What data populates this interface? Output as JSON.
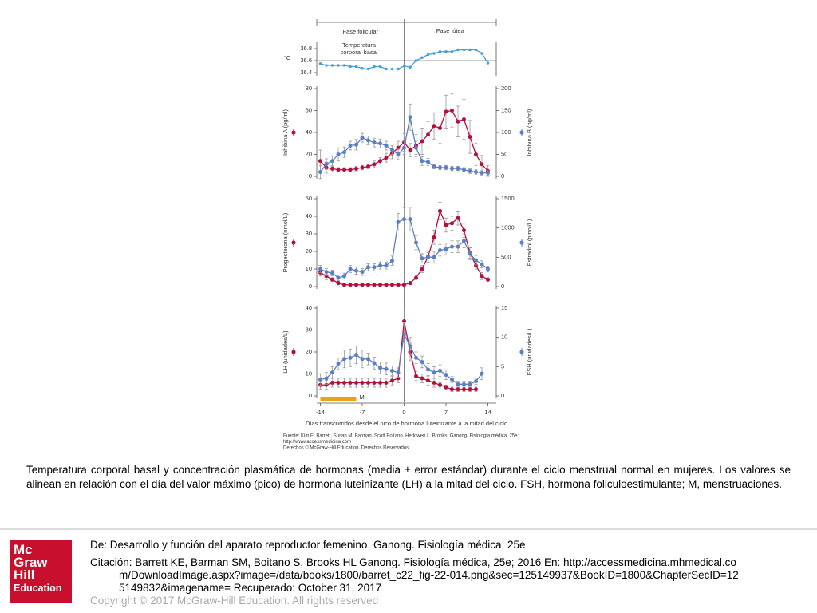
{
  "chart_data": [
    {
      "type": "line",
      "phases": [
        "Fase folicular",
        "Fase lútea"
      ],
      "annotations": [
        "Temperatura",
        "corporal basal"
      ],
      "ylabel": "°C",
      "x": [
        -14,
        -13,
        -12,
        -11,
        -10,
        -9,
        -8,
        -7,
        -6,
        -5,
        -4,
        -3,
        -2,
        -1,
        0,
        1,
        2,
        3,
        4,
        5,
        6,
        7,
        8,
        9,
        10,
        11,
        12,
        13,
        14
      ],
      "xlim": [
        -14.6,
        15.4
      ],
      "ylim": [
        36.4,
        36.8
      ],
      "yticks": [
        36.4,
        36.6,
        36.8
      ],
      "series": [
        {
          "color": "#4a9fd6",
          "values": [
            36.55,
            36.52,
            36.52,
            36.52,
            36.52,
            36.5,
            36.5,
            36.47,
            36.46,
            36.5,
            36.5,
            36.46,
            36.46,
            36.46,
            36.51,
            36.49,
            36.6,
            36.65,
            36.7,
            36.72,
            36.75,
            36.75,
            36.75,
            36.78,
            36.78,
            36.78,
            36.78,
            36.72,
            36.56
          ]
        }
      ]
    },
    {
      "type": "line",
      "x": [
        -14,
        -13,
        -12,
        -11,
        -10,
        -9,
        -8,
        -7,
        -6,
        -5,
        -4,
        -3,
        -2,
        -1,
        0,
        1,
        2,
        3,
        4,
        5,
        6,
        7,
        8,
        9,
        10,
        11,
        12,
        13,
        14
      ],
      "xlim": [
        -14.6,
        15.4
      ],
      "ylim": [
        0,
        80
      ],
      "yticks": [
        0,
        20,
        40,
        60,
        80
      ],
      "y2lim": [
        0,
        200
      ],
      "y2ticks": [
        0,
        50,
        100,
        150,
        200
      ],
      "series": [
        {
          "name": "Inhibina A (pg/ml)",
          "color": "#b5103c",
          "values": [
            14,
            8,
            7,
            6,
            6,
            6,
            7,
            8,
            9,
            11,
            14,
            17,
            21,
            26,
            31,
            24,
            28,
            32,
            38,
            46,
            44,
            59,
            60,
            50,
            52,
            36,
            20,
            11,
            5
          ],
          "errors": [
            10,
            5,
            3,
            2,
            2,
            2,
            2,
            2,
            2,
            3,
            3,
            4,
            5,
            6,
            8,
            6,
            10,
            12,
            12,
            12,
            14,
            15,
            15,
            14,
            18,
            15,
            10,
            8,
            5
          ]
        },
        {
          "name": "Inhibina B (pg/ml)",
          "color": "#5b7fc4",
          "axis": "y2",
          "values": [
            10,
            28,
            35,
            50,
            55,
            70,
            72,
            88,
            82,
            77,
            75,
            70,
            60,
            50,
            65,
            135,
            65,
            35,
            33,
            22,
            20,
            20,
            18,
            18,
            15,
            12,
            10,
            8,
            8
          ],
          "errors": [
            15,
            12,
            12,
            15,
            12,
            10,
            12,
            10,
            10,
            10,
            10,
            10,
            10,
            12,
            15,
            30,
            15,
            10,
            8,
            5,
            5,
            5,
            5,
            5,
            5,
            5,
            5,
            5,
            5
          ]
        }
      ]
    },
    {
      "type": "line",
      "x": [
        -14,
        -13,
        -12,
        -11,
        -10,
        -9,
        -8,
        -7,
        -6,
        -5,
        -4,
        -3,
        -2,
        -1,
        0,
        1,
        2,
        3,
        4,
        5,
        6,
        7,
        8,
        9,
        10,
        11,
        12,
        13,
        14
      ],
      "xlim": [
        -14.6,
        15.4
      ],
      "ylim": [
        0,
        50
      ],
      "yticks": [
        0,
        10,
        20,
        30,
        40,
        50
      ],
      "y2lim": [
        0,
        1500
      ],
      "y2ticks": [
        0,
        500,
        1000,
        1500
      ],
      "series": [
        {
          "name": "Progesterona (nmol/L)",
          "color": "#b5103c",
          "values": [
            8,
            6,
            4,
            2,
            1,
            1,
            1,
            1,
            1,
            1,
            1,
            1,
            1,
            1,
            1,
            2,
            5,
            10,
            17,
            28,
            43,
            35,
            36,
            39,
            32,
            19,
            12,
            6,
            4
          ],
          "errors": [
            2,
            2,
            1,
            1,
            0.5,
            0.5,
            0.5,
            0.5,
            0.5,
            0.5,
            0.5,
            0.5,
            0.5,
            0.5,
            0.5,
            1,
            1,
            2,
            3,
            4,
            5,
            4,
            4,
            4,
            4,
            3,
            2,
            2,
            1
          ]
        },
        {
          "name": "Estradiol (pmol/L)",
          "color": "#5b7fc4",
          "axis": "y2",
          "values": [
            300,
            250,
            230,
            150,
            180,
            300,
            270,
            250,
            330,
            330,
            360,
            360,
            440,
            1100,
            1150,
            1150,
            750,
            480,
            500,
            500,
            620,
            640,
            680,
            680,
            780,
            560,
            450,
            380,
            300
          ],
          "errors": [
            60,
            60,
            50,
            50,
            50,
            60,
            60,
            60,
            60,
            60,
            60,
            60,
            80,
            150,
            200,
            200,
            120,
            80,
            80,
            100,
            100,
            100,
            100,
            100,
            120,
            100,
            80,
            60,
            50
          ]
        }
      ]
    },
    {
      "type": "line",
      "x": [
        -14,
        -13,
        -12,
        -11,
        -10,
        -9,
        -8,
        -7,
        -6,
        -5,
        -4,
        -3,
        -2,
        -1,
        0,
        1,
        2,
        3,
        4,
        5,
        6,
        7,
        8,
        9,
        10,
        11,
        12,
        13,
        14
      ],
      "xlim": [
        -14.6,
        15.4
      ],
      "xticks": [
        -14,
        -7,
        0,
        7,
        14
      ],
      "xlabel": "Días transcurridos desde el pico de hormona luteinizante a la mitad del ciclo",
      "ylim": [
        0,
        40
      ],
      "yticks": [
        0,
        10,
        20,
        30,
        40
      ],
      "y2lim": [
        0,
        15
      ],
      "y2ticks": [
        0,
        5,
        10,
        15
      ],
      "annotations": [
        {
          "label": "M",
          "x": [
            -14,
            -8
          ],
          "color": "#e8a317"
        }
      ],
      "series": [
        {
          "name": "LH (unidades/L)",
          "color": "#b5103c",
          "values": [
            5,
            5,
            6,
            6,
            6,
            6,
            6,
            6,
            6,
            6,
            6,
            6,
            7,
            8,
            34,
            20,
            9,
            8,
            7,
            6,
            5,
            4,
            3,
            3,
            3,
            3,
            3,
            null,
            null
          ],
          "errors": [
            2,
            2,
            2,
            2,
            2,
            2,
            2,
            2,
            2,
            2,
            2,
            2,
            2,
            2,
            5,
            4,
            2,
            2,
            2,
            2,
            1,
            1,
            1,
            1,
            1,
            1,
            1,
            null,
            null
          ]
        },
        {
          "name": "FSH (unidades/L)",
          "color": "#5b7fc4",
          "axis": "y2",
          "values": [
            2.8,
            3,
            4,
            5.5,
            6.3,
            6.5,
            7,
            6.3,
            6.3,
            5.6,
            4.8,
            4.6,
            4.3,
            4,
            10.5,
            8.5,
            6.5,
            5.8,
            4.5,
            4,
            4.3,
            3.6,
            2.8,
            2,
            2,
            2,
            2.5,
            3.8,
            null
          ],
          "errors": [
            1,
            1,
            1,
            1,
            1.5,
            1.5,
            1.5,
            1.5,
            1,
            1,
            1,
            1,
            0.8,
            0.8,
            2,
            1.5,
            1,
            1,
            1,
            1,
            1,
            0.8,
            0.5,
            0.5,
            0.5,
            0.5,
            0.5,
            1,
            null
          ]
        }
      ]
    }
  ],
  "source": [
    "Fuente: Kim E. Barrett, Susan M. Barman, Scott Boitano, Heddwen L. Brooks: Ganong. Fisiología médica, 25e:",
    "http://www.accessmedicina.com",
    "Derechos © McGraw-Hill Education. Derechos Reservados."
  ],
  "slide": {
    "caption": "Temperatura corporal basal y concentración plasmática de hormonas (media ± error estándar) durante el ciclo menstrual normal en mujeres. Los valores se alinean en relación con el día del valor máximo (pico) de hormona luteinizante (LH) a la mitad del ciclo. FSH, hormona foliculoestimulante; M, menstruaciones.",
    "from": "De: Desarrollo y función del aparato reproductor femenino, Ganong. Fisiología médica, 25e",
    "citation": "Citación: Barrett KE, Barman SM, Boitano S, Brooks HL  Ganong. Fisiología médica, 25e; 2016 En: http://accessmedicina.mhmedical.com/DownloadImage.aspx?image=/data/books/1800/barret_c22_fig-22-014.png&sec=125149937&BookID=1800&ChapterSecID=125149832&imagename= Recuperado: October 31, 2017",
    "copyright": "Copyright © 2017 McGraw-Hill Education. All rights reserved",
    "logo": [
      "Mc",
      "Graw",
      "Hill",
      "Education"
    ]
  }
}
